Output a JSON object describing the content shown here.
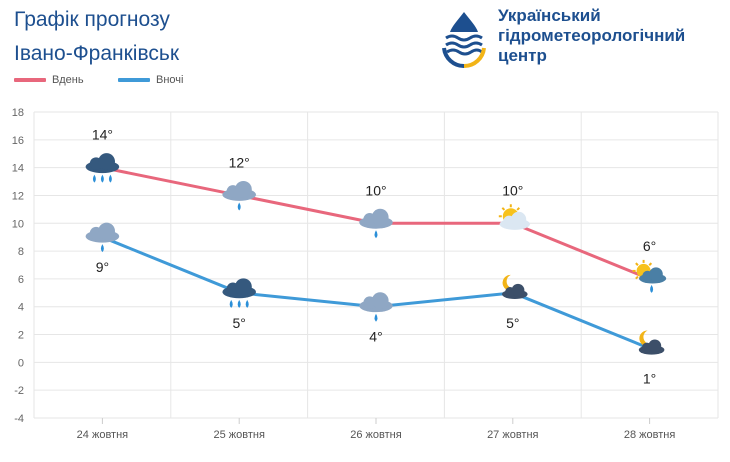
{
  "header": {
    "title": "Графік прогнозу",
    "city": "Івано-Франківськ"
  },
  "organization": {
    "name_line1": "Український",
    "name_line2": "гідрометеорологічний",
    "name_line3": "центр",
    "logo_icon": "drop-waves-logo-icon",
    "logo_colors": [
      "#1d4f8f",
      "#f2b417"
    ]
  },
  "chart_data": {
    "type": "line",
    "categories": [
      "24 жовтня",
      "25 жовтня",
      "26 жовтня",
      "27 жовтня",
      "28 жовтня"
    ],
    "ylim": [
      -4,
      18
    ],
    "yticks": [
      -4,
      -2,
      0,
      2,
      4,
      6,
      8,
      10,
      12,
      14,
      16,
      18
    ],
    "grid": true,
    "legend_position": "top-left",
    "series": [
      {
        "name": "Вдень",
        "color": "#e8677c",
        "values": [
          14,
          12,
          10,
          10,
          6
        ],
        "labels": [
          "14°",
          "12°",
          "10°",
          "10°",
          "6°"
        ],
        "icons": [
          "heavy-rain-cloud-icon",
          "rain-cloud-icon",
          "rain-cloud-icon",
          "sun-behind-cloud-icon",
          "sun-cloud-rain-icon"
        ]
      },
      {
        "name": "Вночі",
        "color": "#3f9ad8",
        "values": [
          9,
          5,
          4,
          5,
          1
        ],
        "labels": [
          "9°",
          "5°",
          "4°",
          "5°",
          "1°"
        ],
        "icons": [
          "rain-cloud-icon",
          "heavy-rain-cloud-icon",
          "rain-cloud-icon",
          "moon-cloud-icon",
          "moon-cloud-icon"
        ]
      }
    ]
  }
}
